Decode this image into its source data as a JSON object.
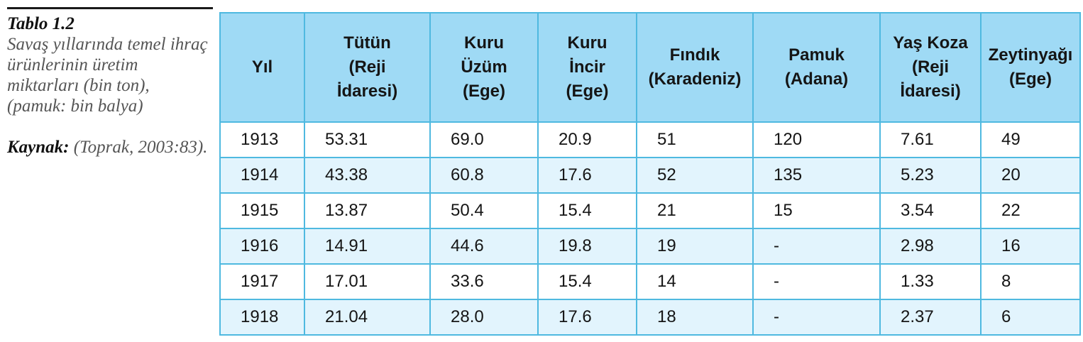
{
  "caption": {
    "title": "Tablo 1.2",
    "description": "Savaş yıllarında temel ihraç ürünlerinin üretim miktarları (bin ton), (pamuk: bin balya)",
    "source_label": "Kaynak:",
    "source_text": " (Toprak, 2003:83)."
  },
  "table": {
    "headers": [
      [
        "Yıl"
      ],
      [
        "Tütün",
        "(Reji",
        "İdaresi)"
      ],
      [
        "Kuru",
        "Üzüm",
        "(Ege)"
      ],
      [
        "Kuru",
        "İncir",
        "(Ege)"
      ],
      [
        "Fındık",
        "(Karadeniz)"
      ],
      [
        "Pamuk",
        "(Adana)"
      ],
      [
        "Yaş Koza",
        "(Reji",
        "İdaresi)"
      ],
      [
        "Zeytinyağı",
        "(Ege)"
      ]
    ],
    "rows": [
      [
        "1913",
        "53.31",
        "69.0",
        "20.9",
        "51",
        "120",
        "7.61",
        "49"
      ],
      [
        "1914",
        "43.38",
        "60.8",
        "17.6",
        "52",
        "135",
        "5.23",
        "20"
      ],
      [
        "1915",
        "13.87",
        "50.4",
        "15.4",
        "21",
        "15",
        "3.54",
        "22"
      ],
      [
        "1916",
        "14.91",
        "44.6",
        "19.8",
        "19",
        "-",
        "2.98",
        "16"
      ],
      [
        "1917",
        "17.01",
        "33.6",
        "15.4",
        "14",
        "-",
        "1.33",
        "8"
      ],
      [
        "1918",
        "21.04",
        "28.0",
        "17.6",
        "18",
        "-",
        "2.37",
        "6"
      ]
    ]
  }
}
